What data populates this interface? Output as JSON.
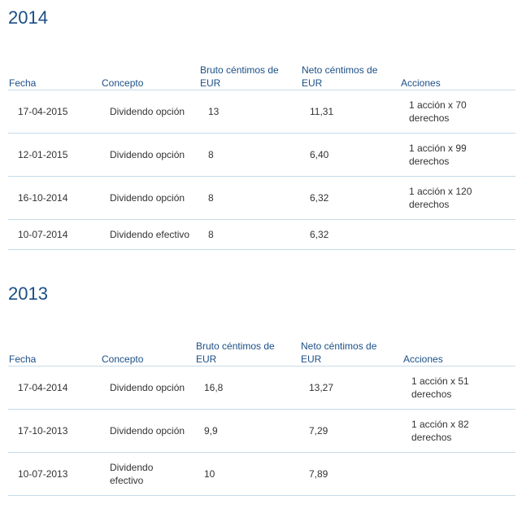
{
  "sections": [
    {
      "year": "2014",
      "headers": {
        "fecha": "Fecha",
        "concepto": "Concepto",
        "bruto": "Bruto céntimos de EUR",
        "neto": "Neto céntimos de EUR",
        "acciones": "Acciones"
      },
      "rows": [
        {
          "fecha": "17-04-2015",
          "concepto": "Dividendo opción",
          "bruto": "13",
          "neto": "11,31",
          "acciones": "1 acción x 70 derechos"
        },
        {
          "fecha": "12-01-2015",
          "concepto": "Dividendo opción",
          "bruto": "8",
          "neto": "6,40",
          "acciones": "1 acción x 99 derechos"
        },
        {
          "fecha": "16-10-2014",
          "concepto": "Dividendo opción",
          "bruto": "8",
          "neto": "6,32",
          "acciones": "1 acción x 120 derechos"
        },
        {
          "fecha": "10-07-2014",
          "concepto": "Dividendo efectivo",
          "bruto": "8",
          "neto": "6,32",
          "acciones": ""
        }
      ]
    },
    {
      "year": "2013",
      "headers": {
        "fecha": "Fecha",
        "concepto": "Concepto",
        "bruto": "Bruto céntimos de EUR",
        "neto": "Neto céntimos de EUR",
        "acciones": "Acciones"
      },
      "rows": [
        {
          "fecha": "17-04-2014",
          "concepto": "Dividendo opción",
          "bruto": "16,8",
          "neto": "13,27",
          "acciones": "1 acción x 51 derechos"
        },
        {
          "fecha": "17-10-2013",
          "concepto": "Dividendo opción",
          "bruto": "9,9",
          "neto": "7,29",
          "acciones": "1 acción x 82 derechos"
        },
        {
          "fecha": "10-07-2013",
          "concepto": "Dividendo efectivo",
          "bruto": "10",
          "neto": "7,89",
          "acciones": ""
        }
      ]
    }
  ]
}
